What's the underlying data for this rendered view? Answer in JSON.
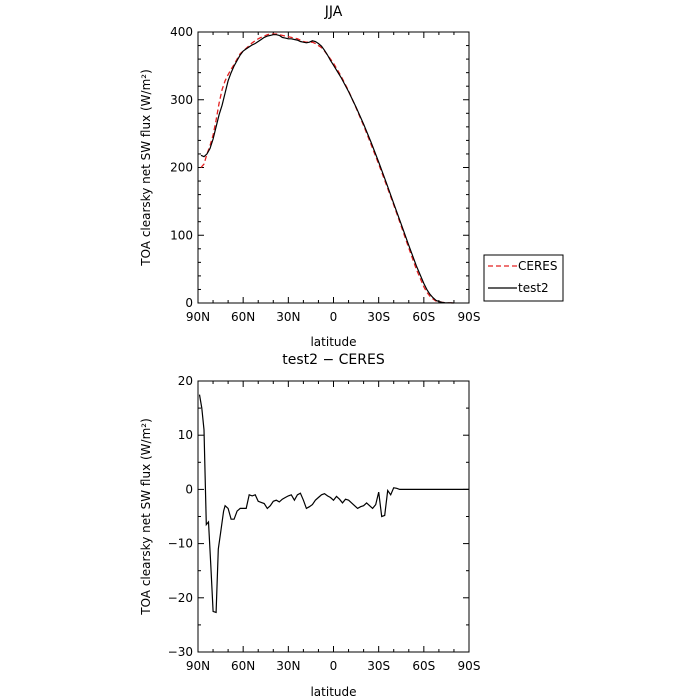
{
  "chart_data": [
    {
      "type": "line",
      "title": "JJA",
      "xlabel": "latitude",
      "ylabel": "TOA clearsky net SW flux (W/m²)",
      "xlim": [
        90,
        -90
      ],
      "ylim": [
        0,
        400
      ],
      "x_ticks": [
        "90N",
        "60N",
        "30N",
        "0",
        "30S",
        "60S",
        "90S"
      ],
      "y_ticks": [
        "0",
        "100",
        "200",
        "300",
        "400"
      ],
      "legend": {
        "position": "right",
        "entries": [
          "CERES",
          "test2"
        ]
      },
      "series": [
        {
          "name": "CERES",
          "style": "dashed",
          "color": "#e32020",
          "x": [
            88,
            86,
            84,
            82,
            80,
            78,
            76,
            74,
            72,
            70,
            68,
            66,
            64,
            62,
            60,
            58,
            56,
            54,
            52,
            50,
            48,
            46,
            44,
            42,
            40,
            38,
            36,
            34,
            32,
            30,
            28,
            26,
            24,
            22,
            20,
            18,
            16,
            14,
            12,
            10,
            8,
            6,
            4,
            2,
            0,
            -5,
            -10,
            -15,
            -20,
            -25,
            -30,
            -35,
            -40,
            -45,
            -50,
            -55,
            -60,
            -62,
            -64,
            -66,
            -68,
            -70,
            -72,
            -74,
            -76,
            -78,
            -80
          ],
          "values": [
            200,
            205,
            220,
            232,
            248,
            270,
            295,
            315,
            328,
            337,
            345,
            352,
            360,
            368,
            372,
            376,
            380,
            384,
            387,
            390,
            392,
            394,
            396,
            397,
            397,
            397,
            396,
            395,
            394,
            393,
            392,
            391,
            390,
            388,
            386,
            385,
            385,
            385,
            383,
            380,
            377,
            372,
            366,
            360,
            354,
            335,
            313,
            288,
            262,
            234,
            205,
            175,
            145,
            113,
            81,
            50,
            24,
            16,
            10,
            6,
            3,
            2,
            1,
            0.5,
            0.2,
            0.1,
            0
          ]
        },
        {
          "name": "test2",
          "style": "solid",
          "color": "#000000",
          "x": [
            88,
            86,
            84,
            82,
            80,
            78,
            76,
            74,
            72,
            70,
            68,
            66,
            64,
            62,
            60,
            58,
            56,
            54,
            52,
            50,
            48,
            46,
            44,
            42,
            40,
            38,
            36,
            34,
            32,
            30,
            28,
            26,
            24,
            22,
            20,
            18,
            16,
            14,
            12,
            10,
            8,
            6,
            4,
            2,
            0,
            -5,
            -10,
            -15,
            -20,
            -25,
            -30,
            -35,
            -40,
            -45,
            -50,
            -55,
            -60,
            -62,
            -64,
            -66,
            -68,
            -70,
            -72,
            -74,
            -76,
            -78,
            -80
          ],
          "values": [
            218,
            216,
            220,
            228,
            242,
            260,
            278,
            292,
            310,
            328,
            340,
            350,
            358,
            366,
            372,
            375,
            378,
            381,
            383,
            386,
            389,
            392,
            394,
            395,
            396,
            396,
            395,
            392,
            391,
            390,
            390,
            389,
            388,
            386,
            385,
            384,
            385,
            387,
            386,
            383,
            379,
            373,
            366,
            358,
            351,
            333,
            312,
            289,
            264,
            237,
            208,
            178,
            147,
            116,
            85,
            55,
            29,
            20,
            13,
            8,
            4,
            2,
            1,
            0.5,
            0.2,
            0.1,
            0
          ]
        }
      ]
    },
    {
      "type": "line",
      "title": "test2 − CERES",
      "xlabel": "latitude",
      "ylabel": "TOA clearsky net SW flux (W/m²)",
      "xlim": [
        90,
        -90
      ],
      "ylim": [
        -30,
        20
      ],
      "x_ticks": [
        "90N",
        "60N",
        "30N",
        "0",
        "30S",
        "60S",
        "90S"
      ],
      "y_ticks": [
        "−30",
        "−20",
        "−10",
        "0",
        "10",
        "20"
      ],
      "series": [
        {
          "style": "solid",
          "color": "#000000",
          "x": [
            89,
            87.5,
            86,
            84.5,
            83,
            81.5,
            80,
            78,
            76.5,
            75,
            73,
            72,
            70,
            68,
            66,
            64,
            62,
            60,
            58,
            56,
            54,
            52,
            50,
            48,
            46,
            44,
            42,
            40,
            38,
            36,
            34,
            32,
            30,
            28,
            26,
            24,
            22,
            20,
            18,
            16,
            14,
            12,
            10,
            8,
            6,
            4,
            2,
            0,
            -2,
            -4,
            -6,
            -8,
            -10,
            -12,
            -14,
            -16,
            -18,
            -20,
            -22,
            -24,
            -26,
            -28,
            -30,
            -32,
            -34,
            -36,
            -38,
            -40,
            -42,
            -44,
            -46,
            -48,
            -50,
            -52,
            -54,
            -56,
            -58,
            -60,
            -62,
            -64,
            -66,
            -67,
            -68,
            -70,
            -72,
            -74,
            -76,
            -78,
            -80,
            -84,
            -90
          ],
          "values": [
            17.5,
            15,
            11,
            -6.5,
            -6,
            -14,
            -22.5,
            -22.7,
            -11,
            -8,
            -4,
            -3,
            -3.5,
            -5.5,
            -5.5,
            -4,
            -3.5,
            -3.5,
            -3.5,
            -1,
            -1.2,
            -1,
            -2.2,
            -2.4,
            -2.6,
            -3.5,
            -3,
            -2.2,
            -2,
            -2.3,
            -1.8,
            -1.5,
            -1.2,
            -1,
            -2,
            -1,
            -0.7,
            -2,
            -3.5,
            -3.2,
            -2.8,
            -2,
            -1.5,
            -1,
            -0.8,
            -1.2,
            -1.5,
            -2,
            -1.3,
            -1.8,
            -2.5,
            -1.8,
            -2,
            -2.5,
            -3,
            -3.5,
            -3.2,
            -3,
            -2.5,
            -3,
            -3.5,
            -2.8,
            -0.5,
            -5,
            -4.8,
            -0.2,
            -1,
            0.3,
            0.2,
            0,
            0,
            0,
            0,
            0,
            0,
            0,
            0,
            0,
            0,
            0,
            0,
            0,
            0,
            0,
            0,
            0,
            0,
            0,
            0,
            0,
            0
          ]
        }
      ]
    }
  ]
}
